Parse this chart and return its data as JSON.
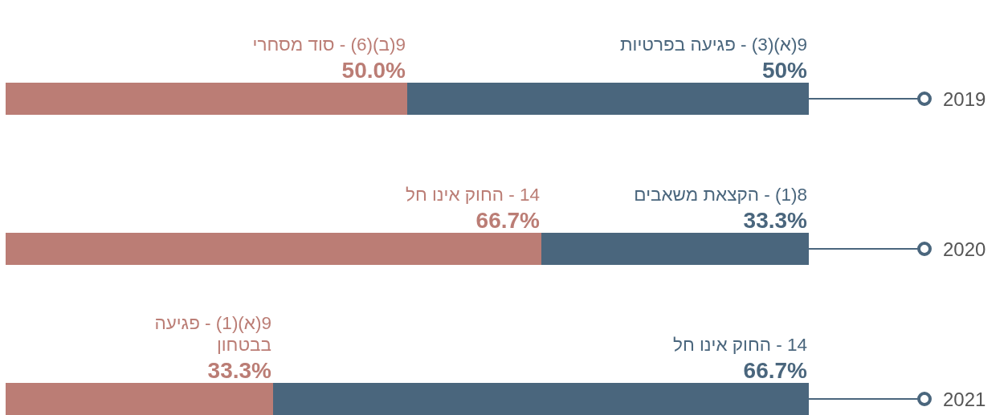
{
  "chart_data": [
    {
      "type": "bar",
      "orientation": "horizontal",
      "stacked": true,
      "categories": [
        "2019"
      ],
      "tick_labels": "y",
      "series": [
        {
          "name": "9(א)(3) - פגיעה בפרטיות",
          "color": "#4a667d",
          "values": [
            50
          ],
          "value_labels": [
            "50%"
          ]
        },
        {
          "name": "9(ב)(6) - סוד מסחרי",
          "color": "#bb7d75",
          "values": [
            50
          ],
          "value_labels": [
            "50.0%"
          ]
        }
      ]
    },
    {
      "type": "bar",
      "orientation": "horizontal",
      "stacked": true,
      "categories": [
        "2020"
      ],
      "tick_labels": "y",
      "series": [
        {
          "name": "8(1) - הקצאת משאבים",
          "color": "#4a667d",
          "values": [
            33.3
          ],
          "value_labels": [
            "33.3%"
          ]
        },
        {
          "name": "14 - החוק אינו חל",
          "color": "#bb7d75",
          "values": [
            66.7
          ],
          "value_labels": [
            "66.7%"
          ]
        }
      ]
    },
    {
      "type": "bar",
      "orientation": "horizontal",
      "stacked": true,
      "categories": [
        "2021"
      ],
      "tick_labels": "y",
      "series": [
        {
          "name": "14 - החוק אינו חל",
          "color": "#4a667d",
          "values": [
            66.7
          ],
          "value_labels": [
            "66.7%"
          ]
        },
        {
          "name": "9(א)(1) - פגיעה בבטחון",
          "color": "#bb7d75",
          "values": [
            33.3
          ],
          "value_labels": [
            "33.3%"
          ]
        }
      ]
    }
  ]
}
